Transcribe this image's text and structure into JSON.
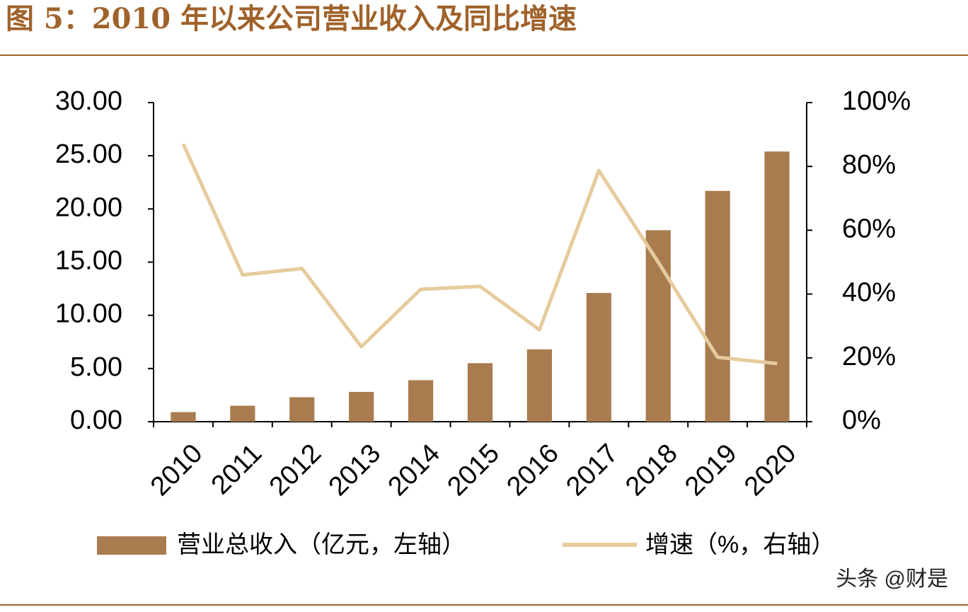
{
  "chart_data": {
    "type": "bar-line",
    "title": "图 5：2010 年以来公司营业收入及同比增速",
    "categories": [
      "2010",
      "2011",
      "2012",
      "2013",
      "2014",
      "2015",
      "2016",
      "2017",
      "2018",
      "2019",
      "2020"
    ],
    "series": [
      {
        "name": "营业总收入（亿元，左轴）",
        "type": "bar",
        "color": "#a87c4f",
        "axis": "y",
        "values": [
          0.9,
          1.5,
          2.3,
          2.8,
          3.9,
          5.5,
          6.8,
          12.1,
          18.0,
          21.7,
          25.4
        ]
      },
      {
        "name": "增速（%，右轴）",
        "type": "line",
        "color": "#e6cb9c",
        "axis": "y2",
        "values": [
          87,
          46,
          48,
          23.5,
          41.5,
          42.4,
          28.8,
          78.7,
          50,
          20.2,
          18.2
        ]
      }
    ],
    "ylim": [
      0,
      30
    ],
    "yticks": [
      {
        "value": 0,
        "label": "0.00"
      },
      {
        "value": 5,
        "label": "5.00"
      },
      {
        "value": 10,
        "label": "10.00"
      },
      {
        "value": 15,
        "label": "15.00"
      },
      {
        "value": 20,
        "label": "20.00"
      },
      {
        "value": 25,
        "label": "25.00"
      },
      {
        "value": 30,
        "label": "30.00"
      }
    ],
    "y2lim": [
      0,
      100
    ],
    "y2ticks": [
      {
        "value": 0,
        "label": "0%"
      },
      {
        "value": 20,
        "label": "20%"
      },
      {
        "value": 40,
        "label": "40%"
      },
      {
        "value": 60,
        "label": "60%"
      },
      {
        "value": 80,
        "label": "80%"
      },
      {
        "value": 100,
        "label": "100%"
      }
    ]
  },
  "watermark": "头条 @财是"
}
